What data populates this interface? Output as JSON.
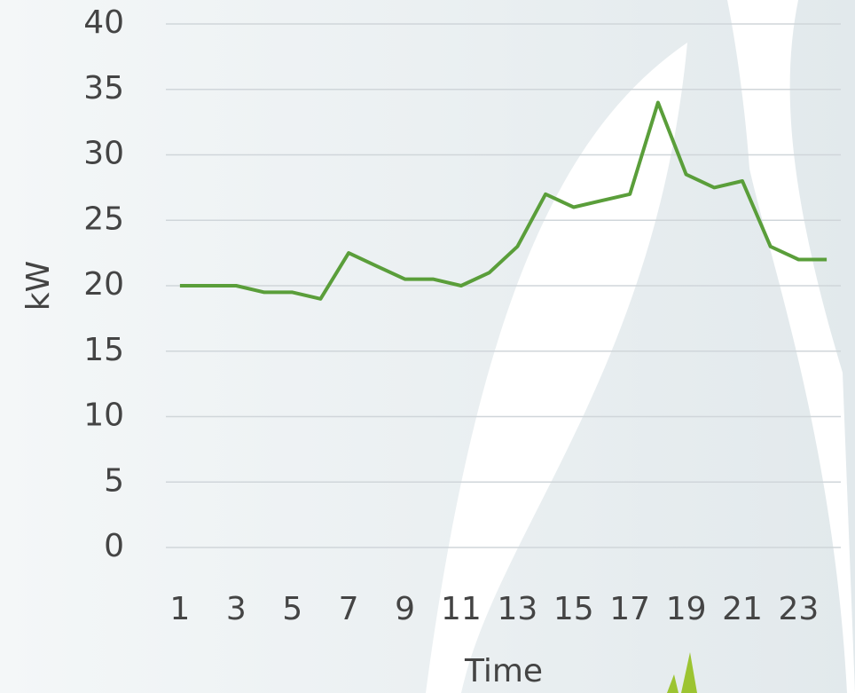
{
  "chart_data": {
    "type": "line",
    "x_label": "Time",
    "y_label": "kW",
    "categories": [
      1,
      null,
      3,
      null,
      5,
      null,
      7,
      null,
      9,
      null,
      11,
      null,
      13,
      null,
      15,
      null,
      17,
      null,
      19,
      null,
      21,
      null,
      23,
      null
    ],
    "values": [
      20,
      20,
      20,
      19.5,
      19.5,
      19,
      22.5,
      21.5,
      20.5,
      20.5,
      20,
      21,
      23,
      27,
      26,
      26.5,
      27,
      34,
      28.5,
      27.5,
      28,
      23,
      22,
      22
    ],
    "color": "#5a9e3a",
    "ylim": [
      0,
      40
    ],
    "yticks": [
      0,
      5,
      10,
      15,
      20,
      25,
      30,
      35,
      40
    ],
    "grid": true
  }
}
